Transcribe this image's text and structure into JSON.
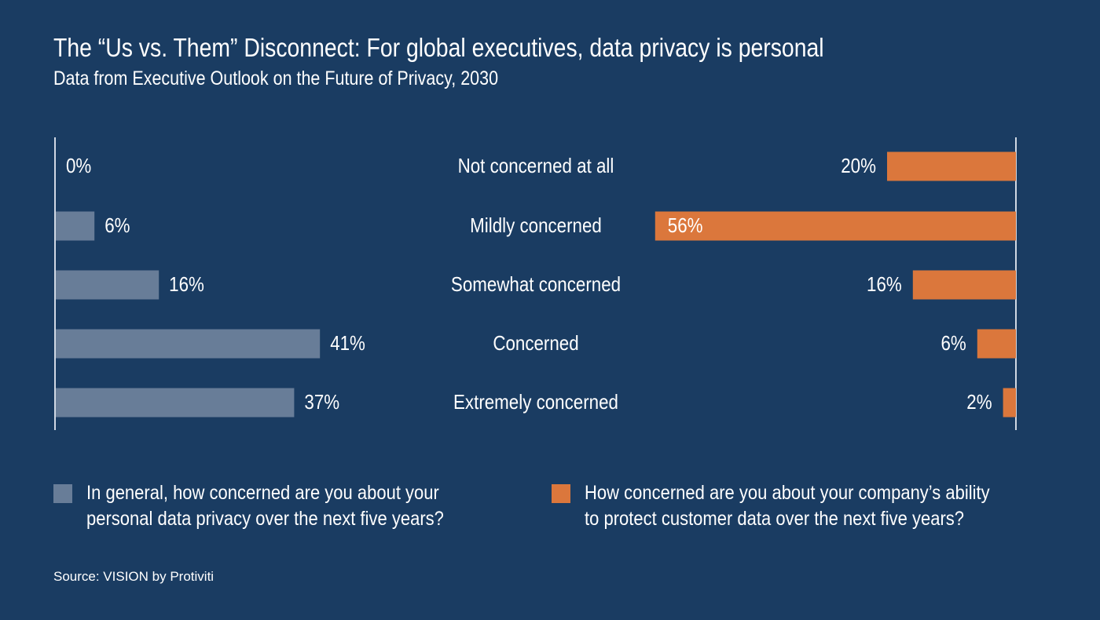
{
  "title": "The “Us vs. Them” Disconnect: For global executives, data privacy is personal",
  "subtitle": "Data from Executive Outlook on the Future of Privacy, 2030",
  "source": "Source: VISION by Protiviti",
  "chart_data": {
    "type": "bar",
    "orientation": "horizontal-diverging",
    "categories": [
      "Not concerned at all",
      "Mildly concerned",
      "Somewhat concerned",
      "Concerned",
      "Extremely concerned"
    ],
    "series": [
      {
        "name": "In general, how concerned are you about your personal data privacy over the next five years?",
        "name_lines": [
          "In general, how concerned are you about your",
          "personal data privacy over the next five years?"
        ],
        "values": [
          0,
          6,
          16,
          41,
          37
        ],
        "labels": [
          "0%",
          "6%",
          "16%",
          "41%",
          "37%"
        ],
        "color": "#687d98",
        "side": "left"
      },
      {
        "name": "How concerned are you about your company’s ability to protect customer data over the next five years?",
        "name_lines": [
          "How concerned are you about your company’s ability",
          "to protect customer data over the next five years?"
        ],
        "values": [
          20,
          56,
          16,
          6,
          2
        ],
        "labels": [
          "20%",
          "56%",
          "16%",
          "6%",
          "2%"
        ],
        "color": "#db773c",
        "side": "right"
      }
    ],
    "unit": "%",
    "legend": "bottom"
  }
}
